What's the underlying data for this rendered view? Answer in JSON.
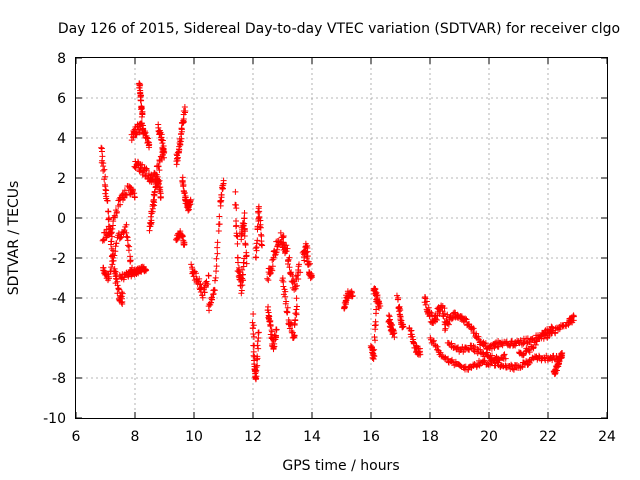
{
  "chart_data": {
    "type": "scatter",
    "title": "Day 126 of 2015, Sidereal Day-to-day VTEC variation (SDTVAR) for receiver clgo",
    "xlabel": "GPS time / hours",
    "ylabel": "SDTVAR / TECUs",
    "xlim": [
      6,
      24
    ],
    "ylim": [
      -10,
      8
    ],
    "xticks": [
      6,
      8,
      10,
      12,
      14,
      16,
      18,
      20,
      22,
      24
    ],
    "yticks": [
      -10,
      -8,
      -6,
      -4,
      -2,
      0,
      2,
      4,
      6,
      8
    ],
    "grid": true,
    "marker": "plus",
    "color": "#ff0000",
    "series": [
      {
        "name": "SDTVAR",
        "segments": [
          {
            "x": [
              6.85,
              7.0,
              7.15,
              7.3,
              7.45,
              7.6
            ],
            "y": [
              3.5,
              1.5,
              -0.5,
              -2.5,
              -3.8,
              -4.1
            ],
            "spread": 0.6
          },
          {
            "x": [
              6.9,
              7.2,
              7.5,
              7.8,
              8.0
            ],
            "y": [
              -1.0,
              -0.5,
              1.0,
              1.5,
              1.2
            ],
            "spread": 0.5
          },
          {
            "x": [
              6.9,
              7.1,
              7.4,
              7.7,
              7.9
            ],
            "y": [
              -2.5,
              -3.0,
              -1.0,
              -0.5,
              -2.8
            ],
            "spread": 0.4
          },
          {
            "x": [
              7.5,
              7.8,
              8.0,
              8.2,
              8.4
            ],
            "y": [
              -3.0,
              -2.8,
              -2.7,
              -2.6,
              -2.5
            ],
            "spread": 0.3
          },
          {
            "x": [
              7.9,
              8.05,
              8.2,
              8.35,
              8.5
            ],
            "y": [
              4.0,
              4.4,
              4.6,
              4.2,
              3.5
            ],
            "spread": 0.5
          },
          {
            "x": [
              8.15,
              8.2,
              8.25
            ],
            "y": [
              6.8,
              5.9,
              5.0
            ],
            "spread": 0.3
          },
          {
            "x": [
              8.0,
              8.2,
              8.4,
              8.6,
              8.8,
              9.0
            ],
            "y": [
              2.8,
              2.5,
              2.2,
              1.9,
              2.5,
              3.5
            ],
            "spread": 0.5
          },
          {
            "x": [
              8.5,
              8.6,
              8.7,
              8.8,
              8.9
            ],
            "y": [
              -0.5,
              0.5,
              1.5,
              2.0,
              1.0
            ],
            "spread": 0.4
          },
          {
            "x": [
              8.8,
              8.9,
              9.0
            ],
            "y": [
              4.5,
              4.0,
              3.0
            ],
            "spread": 0.4
          },
          {
            "x": [
              9.4,
              9.5,
              9.6,
              9.7
            ],
            "y": [
              2.8,
              3.5,
              4.5,
              5.5
            ],
            "spread": 0.4
          },
          {
            "x": [
              9.6,
              9.7,
              9.8,
              9.9
            ],
            "y": [
              2.0,
              1.0,
              0.5,
              0.8
            ],
            "spread": 0.3
          },
          {
            "x": [
              9.4,
              9.55,
              9.7
            ],
            "y": [
              -1.0,
              -0.7,
              -1.5
            ],
            "spread": 0.3
          },
          {
            "x": [
              9.9,
              10.1,
              10.3,
              10.5
            ],
            "y": [
              -2.5,
              -3.0,
              -3.8,
              -3.0
            ],
            "spread": 0.5
          },
          {
            "x": [
              10.5,
              10.7,
              10.9,
              11.0
            ],
            "y": [
              -4.5,
              -3.5,
              0.8,
              1.8
            ],
            "spread": 0.4
          },
          {
            "x": [
              11.4,
              11.5,
              11.6,
              11.7
            ],
            "y": [
              1.2,
              -2.5,
              -3.5,
              -2.0
            ],
            "spread": 0.6
          },
          {
            "x": [
              11.6,
              11.7,
              11.8
            ],
            "y": [
              -1.0,
              0.0,
              -2.5
            ],
            "spread": 0.5
          },
          {
            "x": [
              12.0,
              12.05,
              12.1,
              12.2
            ],
            "y": [
              -5.0,
              -7.5,
              -8.0,
              -5.5
            ],
            "spread": 0.4
          },
          {
            "x": [
              12.1,
              12.2,
              12.3
            ],
            "y": [
              -2.0,
              0.5,
              -1.5
            ],
            "spread": 0.4
          },
          {
            "x": [
              12.5,
              12.7,
              12.9,
              13.1
            ],
            "y": [
              -3.0,
              -2.0,
              -1.0,
              -1.5
            ],
            "spread": 0.7
          },
          {
            "x": [
              12.5,
              12.6,
              12.7,
              12.8
            ],
            "y": [
              -4.5,
              -5.5,
              -6.5,
              -5.5
            ],
            "spread": 0.5
          },
          {
            "x": [
              13.0,
              13.2,
              13.4,
              13.5
            ],
            "y": [
              -3.0,
              -5.0,
              -6.0,
              -4.0
            ],
            "spread": 0.6
          },
          {
            "x": [
              13.0,
              13.2,
              13.4,
              13.6
            ],
            "y": [
              -1.0,
              -2.0,
              -3.5,
              -2.5
            ],
            "spread": 0.7
          },
          {
            "x": [
              13.7,
              13.8,
              13.9,
              14.0
            ],
            "y": [
              -2.0,
              -1.5,
              -2.5,
              -3.0
            ],
            "spread": 0.6
          },
          {
            "x": [
              15.1,
              15.2,
              15.4
            ],
            "y": [
              -4.5,
              -3.8,
              -3.8
            ],
            "spread": 0.3
          },
          {
            "x": [
              16.0,
              16.1,
              16.2
            ],
            "y": [
              -6.5,
              -7.0,
              -3.5
            ],
            "spread": 0.4
          },
          {
            "x": [
              16.1,
              16.2,
              16.3
            ],
            "y": [
              -3.5,
              -4.0,
              -4.5
            ],
            "spread": 0.3
          },
          {
            "x": [
              16.6,
              16.7,
              16.8
            ],
            "y": [
              -5.0,
              -5.5,
              -5.8
            ],
            "spread": 0.4
          },
          {
            "x": [
              16.9,
              17.0,
              17.1
            ],
            "y": [
              -4.0,
              -5.0,
              -5.5
            ],
            "spread": 0.4
          },
          {
            "x": [
              17.3,
              17.5,
              17.7
            ],
            "y": [
              -5.5,
              -6.5,
              -6.8
            ],
            "spread": 0.4
          },
          {
            "x": [
              17.8,
              18.0,
              18.2,
              18.4,
              18.6
            ],
            "y": [
              -4.0,
              -5.0,
              -5.0,
              -4.5,
              -5.2
            ],
            "spread": 0.6
          },
          {
            "x": [
              18.0,
              18.4,
              18.8,
              19.2,
              19.6,
              20.0,
              20.4,
              20.8
            ],
            "y": [
              -6.0,
              -6.8,
              -7.3,
              -7.5,
              -7.3,
              -7.2,
              -7.3,
              -7.5
            ],
            "spread": 0.3
          },
          {
            "x": [
              20.8,
              21.2,
              21.6,
              22.0,
              22.4
            ],
            "y": [
              -7.5,
              -7.3,
              -7.0,
              -7.0,
              -7.0
            ],
            "spread": 0.25
          },
          {
            "x": [
              18.5,
              18.8,
              19.1,
              19.4,
              19.7,
              20.0,
              20.3
            ],
            "y": [
              -5.5,
              -4.8,
              -5.0,
              -5.5,
              -6.2,
              -6.5,
              -6.3
            ],
            "spread": 0.3
          },
          {
            "x": [
              20.3,
              20.7,
              21.1,
              21.5,
              21.9,
              22.3,
              22.7,
              22.9
            ],
            "y": [
              -6.3,
              -6.3,
              -6.2,
              -6.0,
              -5.9,
              -5.6,
              -5.2,
              -5.0
            ],
            "spread": 0.3
          },
          {
            "x": [
              18.6,
              19.0,
              19.4,
              19.8,
              20.2,
              20.6
            ],
            "y": [
              -6.2,
              -6.6,
              -6.5,
              -6.8,
              -7.0,
              -6.9
            ],
            "spread": 0.3
          },
          {
            "x": [
              21.0,
              21.4,
              21.8,
              22.2
            ],
            "y": [
              -6.8,
              -6.6,
              -5.8,
              -5.5
            ],
            "spread": 0.3
          },
          {
            "x": [
              22.2,
              22.3,
              22.4,
              22.5
            ],
            "y": [
              -7.8,
              -7.5,
              -7.0,
              -6.8
            ],
            "spread": 0.3
          }
        ]
      }
    ]
  }
}
